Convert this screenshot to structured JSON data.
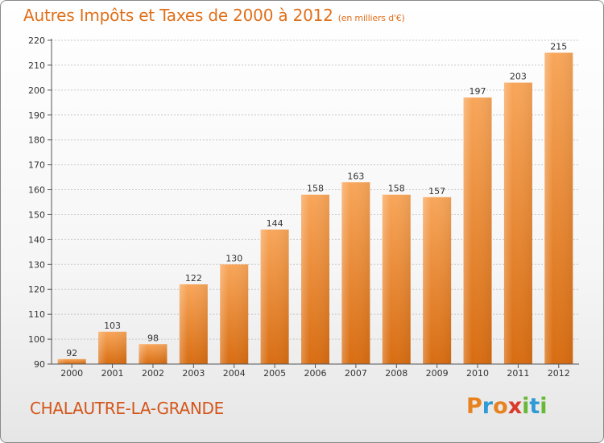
{
  "header": {
    "title": "Autres Impôts et Taxes de 2000 à 2012",
    "unit": "(en milliers d'€)"
  },
  "footer": {
    "commune": "CHALAUTRE-LA-GRANDE",
    "logo": [
      "P",
      "r",
      "o",
      "x",
      "i",
      "t",
      "i"
    ],
    "logo_colors": [
      "#e8821e",
      "#2f9ad6",
      "#e8821e",
      "#d93b2b",
      "#67b835",
      "#2f9ad6",
      "#67b835"
    ]
  },
  "colors": {
    "accent": "#e0701a",
    "bar_light": "#f8a65a",
    "bar_dark": "#d86d12",
    "grid": "#c8c8c8"
  },
  "chart_data": {
    "type": "bar",
    "title": "Autres Impôts et Taxes de 2000 à 2012",
    "subtitle": "(en milliers d'€)",
    "xlabel": "",
    "ylabel": "",
    "categories": [
      "2000",
      "2001",
      "2002",
      "2003",
      "2004",
      "2005",
      "2006",
      "2007",
      "2008",
      "2009",
      "2010",
      "2011",
      "2012"
    ],
    "values": [
      92,
      103,
      98,
      122,
      130,
      144,
      158,
      163,
      158,
      157,
      197,
      203,
      215
    ],
    "ylim": [
      90,
      220
    ],
    "yticks": [
      90,
      100,
      110,
      120,
      130,
      140,
      150,
      160,
      170,
      180,
      190,
      200,
      210,
      220
    ],
    "grid": true,
    "data_labels": true
  }
}
